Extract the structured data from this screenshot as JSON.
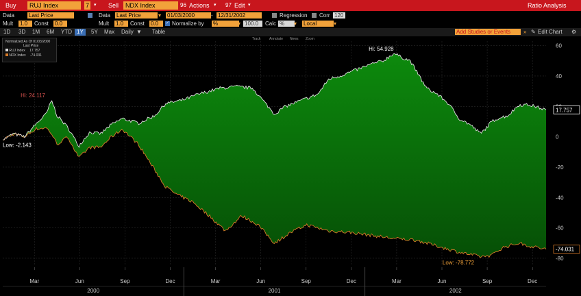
{
  "toolbar": {
    "buy_label": "Buy",
    "security1": "RUJ Index",
    "slot_num": "7",
    "sell_label": "Sell",
    "security2": "NDX Index",
    "actions_num": "96",
    "actions_label": "Actions",
    "edit_num": "97",
    "edit_label": "Edit",
    "title": "Ratio Analysis"
  },
  "row2": {
    "data_label": "Data",
    "data_value": "Last Price",
    "data2_label": "Data",
    "data2_value": "Last Price",
    "start_date": "01/03/2000",
    "end_date": "12/31/2002",
    "regression_label": "Regression",
    "corr_label": "Corr",
    "corr_value": "120"
  },
  "row3": {
    "mult_label": "Mult",
    "mult_value": "1.0",
    "const_label": "Const",
    "const_value": "0.0",
    "mult2_label": "Mult",
    "mult2_value": "1.0",
    "const2_label": "Const",
    "const2_value": "0.0",
    "normalize_label": "Normalize by",
    "normalize_value": "%",
    "normalize_base": "100.0",
    "calc_label": "Calc",
    "calc_value": "%",
    "local_value": "Local"
  },
  "row4": {
    "periods": [
      "1D",
      "3D",
      "1M",
      "6M",
      "YTD",
      "1Y",
      "5Y",
      "Max"
    ],
    "selected_period": "1Y",
    "frequency": "Daily",
    "table_label": "Table",
    "studies_placeholder": "Add Studies or Events",
    "edit_chart_label": "Edit Chart"
  },
  "chart_tools": [
    "Track",
    "Annotate",
    "News",
    "Zoom"
  ],
  "legend": {
    "title": "Normalized As Of 01/03/2000",
    "subtitle": "Last Price",
    "entries": [
      {
        "name": "RUJ Index",
        "value": "17.757"
      },
      {
        "name": "NDX Index",
        "value": "-74.031"
      }
    ]
  },
  "colors": {
    "accent_red": "#c8161d",
    "field_orange": "#f2a23a",
    "area_green": "#0a7a0a",
    "area_red": "#9b1010",
    "line1": "#dddddd",
    "line2": "#d67a28"
  },
  "chart_data": {
    "type": "area",
    "y_ticks": [
      60,
      40,
      20,
      0,
      -20,
      -40,
      -60,
      -80
    ],
    "ylim": [
      -85,
      63
    ],
    "x_month_labels": [
      "Mar",
      "Jun",
      "Sep",
      "Dec",
      "Mar",
      "Jun",
      "Sep",
      "Dec",
      "Mar",
      "Jun",
      "Sep",
      "Dec"
    ],
    "x_year_labels": [
      "2000",
      "2001",
      "2002"
    ],
    "series": [
      {
        "name": "RUJ Index",
        "x": [
          0,
          0.02,
          0.04,
          0.06,
          0.08,
          0.09,
          0.1,
          0.12,
          0.14,
          0.16,
          0.18,
          0.2,
          0.22,
          0.25,
          0.28,
          0.3,
          0.33,
          0.36,
          0.4,
          0.43,
          0.46,
          0.5,
          0.52,
          0.55,
          0.58,
          0.6,
          0.62,
          0.65,
          0.68,
          0.7,
          0.72,
          0.73,
          0.75,
          0.77,
          0.78,
          0.8,
          0.82,
          0.84,
          0.86,
          0.88,
          0.9,
          0.91,
          0.93,
          0.95,
          0.97,
          1.0
        ],
        "values": [
          -2,
          2,
          0,
          8,
          15,
          24,
          14,
          6,
          -6,
          3,
          2,
          8,
          12,
          9,
          14,
          22,
          24,
          28,
          32,
          33,
          32,
          15,
          20,
          24,
          28,
          38,
          40,
          44,
          48,
          50,
          55,
          53,
          50,
          38,
          32,
          28,
          22,
          12,
          8,
          2,
          10,
          12,
          14,
          21,
          21,
          17.757
        ]
      },
      {
        "name": "NDX Index",
        "x": [
          0,
          0.02,
          0.04,
          0.06,
          0.08,
          0.09,
          0.1,
          0.12,
          0.14,
          0.16,
          0.18,
          0.2,
          0.22,
          0.25,
          0.28,
          0.3,
          0.32,
          0.35,
          0.38,
          0.41,
          0.44,
          0.47,
          0.5,
          0.53,
          0.56,
          0.6,
          0.64,
          0.68,
          0.72,
          0.76,
          0.8,
          0.84,
          0.88,
          0.9,
          0.92,
          0.95,
          0.97,
          1.0
        ],
        "values": [
          -2,
          2,
          0,
          5,
          6,
          2,
          -5,
          0,
          -14,
          -7,
          -7,
          0,
          5,
          -5,
          -22,
          -33,
          -38,
          -43,
          -52,
          -62,
          -52,
          -58,
          -70,
          -63,
          -58,
          -62,
          -63,
          -65,
          -67,
          -68,
          -72,
          -76,
          -79,
          -78,
          -73,
          -70,
          -72,
          -74.031
        ]
      }
    ],
    "annotations": [
      {
        "text": "Hi: 24.117"
      },
      {
        "text": "Low: -2.143"
      },
      {
        "text": "Hi: 54.928"
      },
      {
        "text": "Low: -78.772"
      }
    ],
    "last_values": [
      "17.757",
      "-74.031"
    ]
  }
}
